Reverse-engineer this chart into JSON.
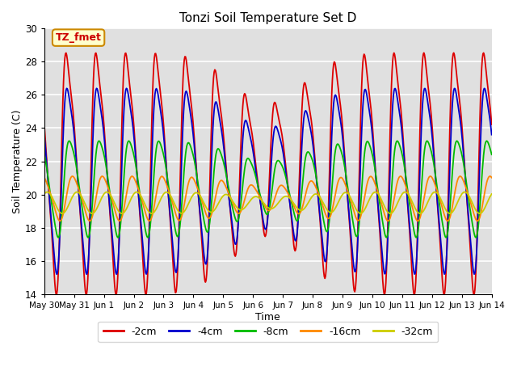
{
  "title": "Tonzi Soil Temperature Set D",
  "xlabel": "Time",
  "ylabel": "Soil Temperature (C)",
  "ylim": [
    14,
    30
  ],
  "xlim_days": [
    0,
    15
  ],
  "x_tick_labels": [
    "May 30",
    "May 31",
    "Jun 1",
    "Jun 2",
    "Jun 3",
    "Jun 4",
    "Jun 5",
    "Jun 6",
    "Jun 7",
    "Jun 8",
    "Jun 9",
    "Jun 10",
    "Jun 11",
    "Jun 12",
    "Jun 13",
    "Jun 14"
  ],
  "legend_labels": [
    "-2cm",
    "-4cm",
    "-8cm",
    "-16cm",
    "-32cm"
  ],
  "legend_colors": [
    "#dd0000",
    "#0000cc",
    "#00bb00",
    "#ff8800",
    "#cccc00"
  ],
  "annotation_text": "TZ_fmet",
  "annotation_bg": "#ffffcc",
  "annotation_border": "#cc8800",
  "bg_color": "#e0e0e0",
  "grid_color": "#cccccc",
  "series_colors": [
    "#dd0000",
    "#0000cc",
    "#00bb00",
    "#ff8800",
    "#cccc00"
  ],
  "series_linewidths": [
    1.3,
    1.3,
    1.3,
    1.3,
    1.3
  ]
}
